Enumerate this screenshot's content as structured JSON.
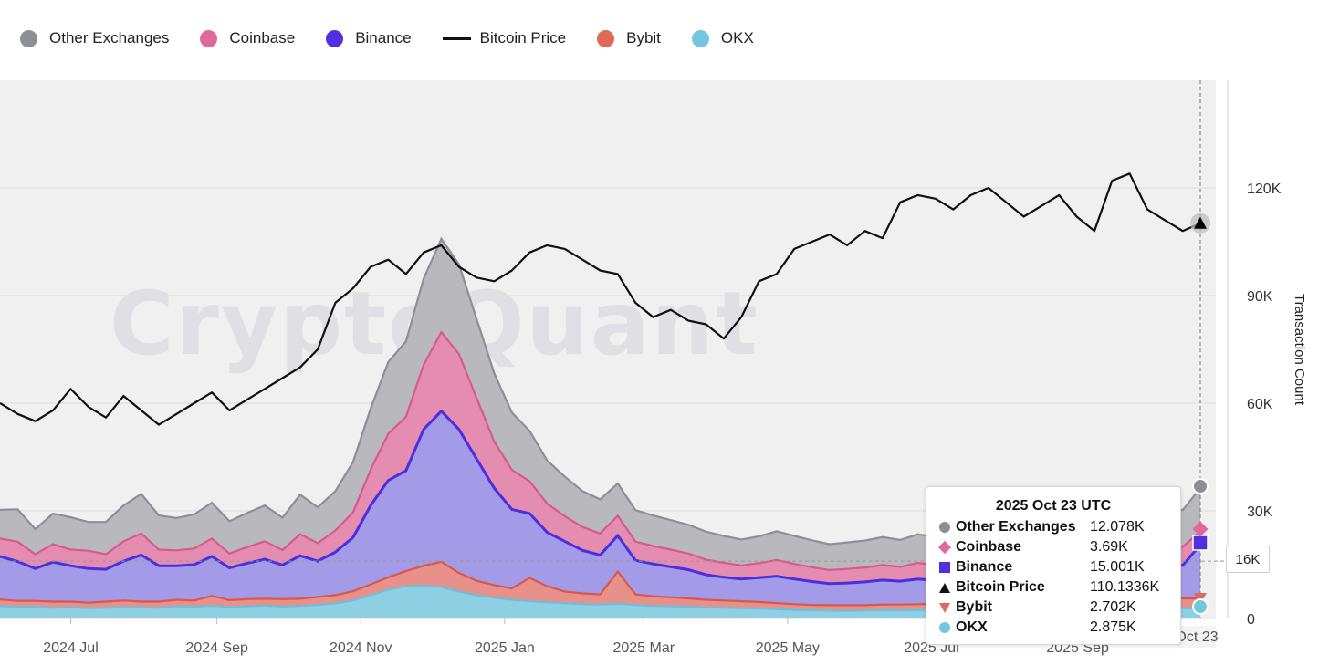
{
  "legend": [
    {
      "label": "Other Exchanges",
      "color": "#8e8e96",
      "shape": "dot"
    },
    {
      "label": "Coinbase",
      "color": "#e0689a",
      "shape": "dot"
    },
    {
      "label": "Binance",
      "color": "#4f2fe0",
      "shape": "dot"
    },
    {
      "label": "Bitcoin Price",
      "color": "#111111",
      "shape": "line"
    },
    {
      "label": "Bybit",
      "color": "#e06a5a",
      "shape": "dot"
    },
    {
      "label": "OKX",
      "color": "#72c6e0",
      "shape": "dot"
    }
  ],
  "watermark": "CryptoQuant",
  "tooltip": {
    "title": "2025 Oct 23 UTC",
    "rows": [
      {
        "name": "Other Exchanges",
        "value": "12.078K",
        "marker": "circle",
        "color": "#8e8e96"
      },
      {
        "name": "Coinbase",
        "value": "3.69K",
        "marker": "diamond",
        "color": "#e0689a"
      },
      {
        "name": "Binance",
        "value": "15.001K",
        "marker": "square",
        "color": "#4f2fe0"
      },
      {
        "name": "Bitcoin Price",
        "value": "110.1336K",
        "marker": "triangle-up",
        "color": "#111111"
      },
      {
        "name": "Bybit",
        "value": "2.702K",
        "marker": "triangle-down",
        "color": "#e06a5a"
      },
      {
        "name": "OKX",
        "value": "2.875K",
        "marker": "circle",
        "color": "#72c6e0"
      }
    ]
  },
  "hover_value": "16K",
  "hover_date_label": "Oct 23",
  "chart_data": {
    "type": "area",
    "stacked": true,
    "x_ticks": [
      "2024 Jul",
      "2024 Sep",
      "2024 Nov",
      "2025 Jan",
      "2025 Mar",
      "2025 May",
      "2025 Jul",
      "2025 Sep"
    ],
    "x_range": [
      "2024-06-01",
      "2025-10-23"
    ],
    "ylabel": "Transaction Count",
    "y_ticks": [
      "0",
      "30K",
      "60K",
      "90K",
      "120K"
    ],
    "ylim": [
      0,
      150000
    ],
    "grid": true,
    "legend_position": "top-left",
    "series": [
      {
        "name": "OKX",
        "values": [
          3500,
          3200,
          3300,
          3000,
          3100,
          2900,
          3000,
          3200,
          3100,
          3000,
          3400,
          3300,
          3500,
          3200,
          3400,
          3600,
          3300,
          3500,
          3800,
          4200,
          5000,
          6500,
          8000,
          9000,
          9200,
          8800,
          7500,
          6500,
          5800,
          5200,
          4800,
          4500,
          4300,
          4000,
          3900,
          4100,
          3800,
          3500,
          3400,
          3300,
          3100,
          3000,
          2900,
          2800,
          2600,
          2400,
          2300,
          2200,
          2100,
          2200,
          2300,
          2200,
          2400,
          2300,
          2200,
          2100,
          2200,
          2300,
          2400,
          2500,
          2700,
          2900,
          3000,
          3100,
          3200,
          3100,
          3000,
          2900,
          2875
        ]
      },
      {
        "name": "Bybit",
        "values": [
          1800,
          1700,
          1600,
          1700,
          1600,
          1500,
          1700,
          1800,
          1600,
          1700,
          1800,
          1700,
          2800,
          1900,
          2000,
          1900,
          2100,
          2000,
          2200,
          2300,
          2600,
          3000,
          3500,
          4200,
          5500,
          7000,
          5200,
          4000,
          3500,
          3200,
          6500,
          4500,
          3200,
          3000,
          2800,
          9000,
          2900,
          2700,
          2500,
          2300,
          2100,
          2000,
          1900,
          1800,
          1700,
          1600,
          1500,
          1500,
          1600,
          1500,
          1600,
          1700,
          1600,
          1800,
          1700,
          1600,
          1800,
          1900,
          2000,
          2100,
          2200,
          2300,
          2500,
          2600,
          2700,
          2600,
          2800,
          2700,
          2702
        ]
      },
      {
        "name": "Binance",
        "values": [
          12000,
          11000,
          9000,
          11000,
          10000,
          9500,
          9000,
          11000,
          13000,
          10000,
          9500,
          10000,
          11000,
          9000,
          10000,
          11000,
          9500,
          12000,
          10000,
          12000,
          15000,
          22000,
          27000,
          28000,
          38000,
          42000,
          40000,
          34000,
          27000,
          22000,
          18000,
          15000,
          14000,
          12000,
          11000,
          10000,
          9500,
          9000,
          8500,
          8000,
          7000,
          6500,
          6200,
          6800,
          7500,
          7000,
          6500,
          6000,
          6200,
          6500,
          6800,
          6500,
          7000,
          6500,
          7200,
          6800,
          6500,
          7000,
          7500,
          8000,
          7800,
          7600,
          8000,
          8500,
          9000,
          8800,
          9500,
          9200,
          15001
        ]
      },
      {
        "name": "Coinbase",
        "values": [
          5000,
          5500,
          4000,
          5000,
          4500,
          5000,
          4200,
          5500,
          6000,
          4500,
          4300,
          4500,
          5000,
          4000,
          4500,
          5000,
          4200,
          6000,
          5000,
          6000,
          7000,
          10000,
          13000,
          15000,
          18000,
          22000,
          21000,
          17000,
          13000,
          11000,
          9000,
          8000,
          7000,
          6500,
          6000,
          5500,
          5200,
          5000,
          4800,
          4500,
          4200,
          4000,
          3800,
          4000,
          4500,
          4200,
          4000,
          3800,
          3900,
          4000,
          4200,
          4000,
          4500,
          4200,
          4400,
          4200,
          4000,
          4300,
          4500,
          4700,
          4600,
          4500,
          4800,
          5000,
          5200,
          5000,
          5400,
          5200,
          3690
        ]
      },
      {
        "name": "Other Exchanges",
        "values": [
          8000,
          9000,
          7000,
          8500,
          9000,
          8000,
          9000,
          10000,
          11000,
          9500,
          9000,
          9500,
          10000,
          9000,
          9500,
          10000,
          9000,
          11000,
          10000,
          11000,
          14000,
          17000,
          20000,
          21000,
          24000,
          26000,
          25000,
          22000,
          19000,
          16000,
          14000,
          12000,
          11000,
          10000,
          9500,
          9000,
          8800,
          8500,
          8200,
          8000,
          7800,
          7500,
          7200,
          7500,
          8000,
          7800,
          7500,
          7200,
          7400,
          7500,
          7800,
          7500,
          8000,
          7800,
          8200,
          8000,
          7800,
          8200,
          8500,
          9000,
          8800,
          8600,
          9000,
          9500,
          10000,
          9800,
          10500,
          10200,
          12078
        ]
      }
    ],
    "price_series": {
      "name": "Bitcoin Price",
      "values": [
        60000,
        57000,
        55000,
        58000,
        64000,
        59000,
        56000,
        62000,
        58000,
        54000,
        57000,
        60000,
        63000,
        58000,
        61000,
        64000,
        67000,
        70000,
        75000,
        88000,
        92000,
        98000,
        100000,
        96000,
        102000,
        104000,
        98000,
        95000,
        94000,
        97000,
        102000,
        104000,
        103000,
        100000,
        97000,
        96000,
        88000,
        84000,
        86000,
        83000,
        82000,
        78000,
        84000,
        94000,
        96000,
        103000,
        105000,
        107000,
        104000,
        108000,
        106000,
        116000,
        118000,
        117000,
        114000,
        118000,
        120000,
        116000,
        112000,
        115000,
        118000,
        112000,
        108000,
        122000,
        124000,
        114000,
        111000,
        108000,
        110133.6
      ]
    }
  }
}
